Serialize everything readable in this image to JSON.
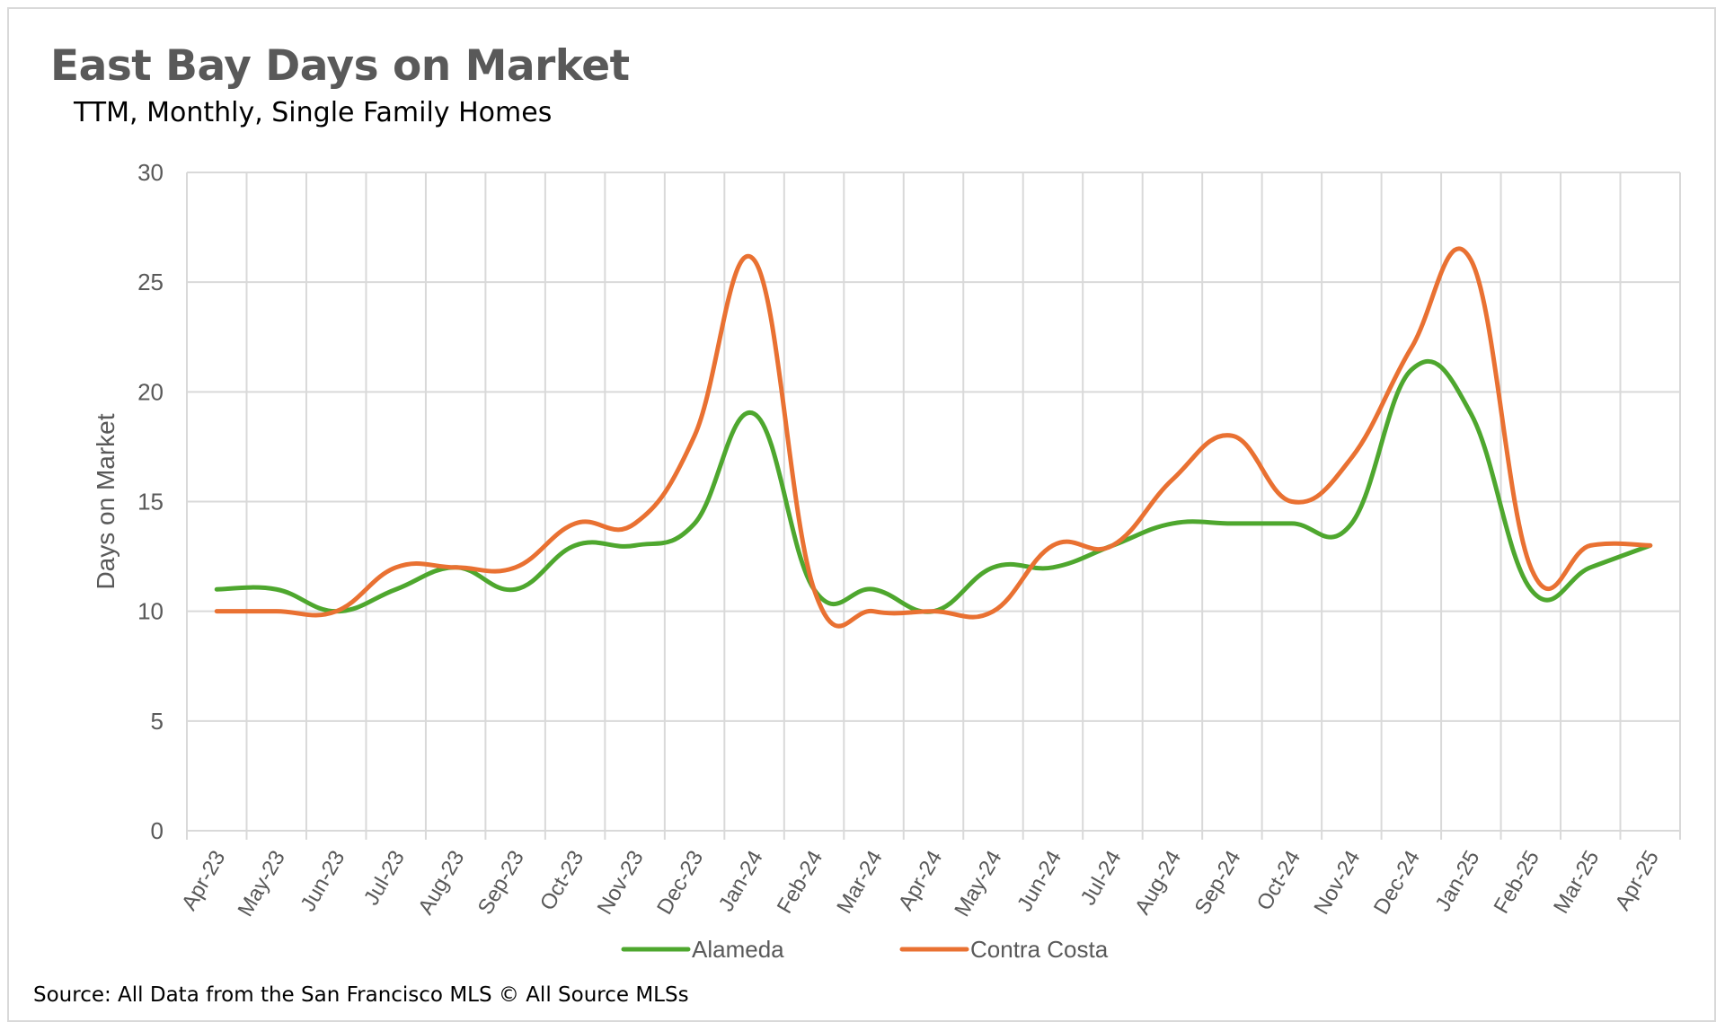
{
  "chart_data": {
    "type": "line",
    "title": "East Bay Days on Market",
    "subtitle": "TTM, Monthly, Single Family Homes",
    "ylabel": "Days on Market",
    "xlabel": "",
    "ylim": [
      0,
      30
    ],
    "yticks": [
      0,
      5,
      10,
      15,
      20,
      25,
      30
    ],
    "grid": true,
    "legend_position": "bottom",
    "categories": [
      "Apr-23",
      "May-23",
      "Jun-23",
      "Jul-23",
      "Aug-23",
      "Sep-23",
      "Oct-23",
      "Nov-23",
      "Dec-23",
      "Jan-24",
      "Feb-24",
      "Mar-24",
      "Apr-24",
      "May-24",
      "Jun-24",
      "Jul-24",
      "Aug-24",
      "Sep-24",
      "Oct-24",
      "Nov-24",
      "Dec-24",
      "Jan-25",
      "Feb-25",
      "Mar-25",
      "Apr-25"
    ],
    "series": [
      {
        "name": "Alameda",
        "color": "#4ea72e",
        "values": [
          11,
          11,
          10,
          11,
          12,
          11,
          13,
          13,
          14,
          19,
          11,
          11,
          10,
          12,
          12,
          13,
          14,
          14,
          14,
          14,
          21,
          19,
          11,
          12,
          13
        ]
      },
      {
        "name": "Contra Costa",
        "color": "#e97132",
        "values": [
          10,
          10,
          10,
          12,
          12,
          12,
          14,
          14,
          18,
          26,
          11,
          10,
          10,
          10,
          13,
          13,
          16,
          18,
          15,
          17,
          22,
          26,
          12,
          13,
          13
        ]
      }
    ]
  },
  "source": "Source: All Data from the San Francisco MLS © All Source MLSs"
}
